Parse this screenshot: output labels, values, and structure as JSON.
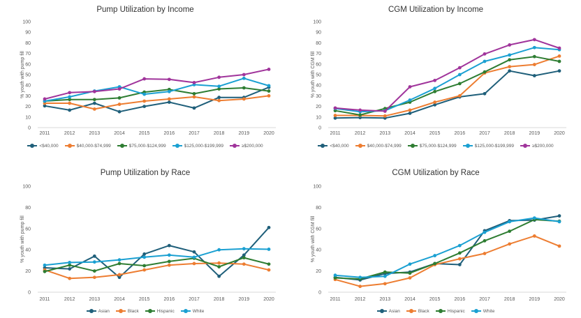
{
  "chart_data": [
    {
      "type": "line",
      "title": "Pump Utilization by Income",
      "ylabel": "% youth with pump fill",
      "xlabel": "",
      "x": [
        "2011",
        "2012",
        "2013",
        "2014",
        "2015",
        "2016",
        "2017",
        "2018",
        "2019",
        "2020"
      ],
      "ylim": [
        0,
        100
      ],
      "yticks": [
        0,
        10,
        20,
        30,
        40,
        50,
        60,
        70,
        80,
        90,
        100
      ],
      "legend_position": "bottom",
      "series": [
        {
          "name": "<$40,000",
          "color": "#1f5f7a",
          "values": [
            20.5,
            16.5,
            23,
            15,
            20,
            24,
            18.5,
            28.5,
            28.5,
            38
          ]
        },
        {
          "name": "$40,000-$74,999",
          "color": "#ed7d31",
          "values": [
            23,
            23,
            17.5,
            22,
            25,
            27,
            29,
            25.5,
            27,
            30
          ]
        },
        {
          "name": "$75,000-$124,999",
          "color": "#2e7d32",
          "values": [
            25,
            26.5,
            26.5,
            28,
            33.5,
            36,
            32,
            36.5,
            37.5,
            34.5
          ]
        },
        {
          "name": "$125,000-$199,999",
          "color": "#1aa0d2",
          "values": [
            25,
            29,
            34.5,
            38.5,
            31.5,
            34,
            40.5,
            39,
            46.5,
            39.5
          ]
        },
        {
          "name": "≥$200,000",
          "color": "#a0349b",
          "values": [
            27,
            33,
            34,
            36.5,
            46,
            45.5,
            42.5,
            47.5,
            50,
            55
          ]
        }
      ]
    },
    {
      "type": "line",
      "title": "CGM Utilization by Income",
      "ylabel": "% youth with CGM fill",
      "xlabel": "",
      "x": [
        "2011",
        "2012",
        "2013",
        "2014",
        "2015",
        "2016",
        "2017",
        "2018",
        "2019",
        "2020"
      ],
      "ylim": [
        0,
        100
      ],
      "yticks": [
        0,
        10,
        20,
        30,
        40,
        50,
        60,
        70,
        80,
        90,
        100
      ],
      "legend_position": "bottom",
      "series": [
        {
          "name": "<$40,000",
          "color": "#1f5f7a",
          "values": [
            9,
            9.5,
            9,
            13.5,
            21.5,
            29,
            32,
            53.5,
            49,
            53.5
          ]
        },
        {
          "name": "$40,000-$74,999",
          "color": "#ed7d31",
          "values": [
            11.5,
            11.5,
            11,
            16.5,
            24,
            30,
            51.5,
            57.5,
            59.5,
            67.5
          ]
        },
        {
          "name": "$75,000-$124,999",
          "color": "#2e7d32",
          "values": [
            16,
            12,
            18,
            24,
            34,
            41.5,
            52.5,
            64,
            67,
            62.5
          ]
        },
        {
          "name": "$125,000-$199,999",
          "color": "#1aa0d2",
          "values": [
            18,
            15,
            16,
            26,
            37,
            50,
            62.5,
            68.5,
            75.5,
            73.5
          ]
        },
        {
          "name": "≥$200,000",
          "color": "#a0349b",
          "values": [
            18.5,
            16.5,
            15.5,
            38.5,
            44.5,
            56.5,
            69.5,
            78,
            83,
            75
          ]
        }
      ]
    },
    {
      "type": "line",
      "title": "Pump Utilization by Race",
      "ylabel": "% youth with pump fill",
      "xlabel": "",
      "x": [
        "2011",
        "2012",
        "2013",
        "2014",
        "2015",
        "2016",
        "2017",
        "2018",
        "2019",
        "2020"
      ],
      "ylim": [
        0,
        100
      ],
      "yticks": [
        0,
        20,
        40,
        60,
        80,
        100
      ],
      "legend_position": "bottom",
      "series": [
        {
          "name": "Asian",
          "color": "#1f5f7a",
          "values": [
            23,
            22,
            34,
            14,
            36,
            44,
            38,
            15,
            35,
            61
          ]
        },
        {
          "name": "Black",
          "color": "#ed7d31",
          "values": [
            21,
            13,
            14,
            16.5,
            21,
            25.5,
            27,
            27.5,
            26.5,
            21
          ]
        },
        {
          "name": "Hispanic",
          "color": "#2e7d32",
          "values": [
            19.5,
            25.5,
            20,
            27,
            25,
            29,
            32,
            24,
            32.5,
            26.5
          ]
        },
        {
          "name": "White",
          "color": "#1aa0d2",
          "values": [
            25.5,
            28,
            28.5,
            30.5,
            33,
            35,
            33,
            40,
            41,
            40.5
          ]
        }
      ]
    },
    {
      "type": "line",
      "title": "CGM Utilization by Race",
      "ylabel": "% youth with CGM fill",
      "xlabel": "",
      "x": [
        "2011",
        "2012",
        "2013",
        "2014",
        "2015",
        "2016",
        "2017",
        "2018",
        "2019",
        "2020"
      ],
      "ylim": [
        0,
        100
      ],
      "yticks": [
        0,
        20,
        40,
        60,
        80,
        100
      ],
      "legend_position": "bottom",
      "series": [
        {
          "name": "Asian",
          "color": "#1f5f7a",
          "values": [
            14,
            11.5,
            17.5,
            19,
            27,
            26,
            58,
            67.5,
            68,
            72
          ]
        },
        {
          "name": "Black",
          "color": "#ed7d31",
          "values": [
            12,
            5.5,
            8,
            13.5,
            26,
            31.5,
            36.5,
            45.5,
            53,
            43.5
          ]
        },
        {
          "name": "Hispanic",
          "color": "#2e7d32",
          "values": [
            13.5,
            12.5,
            19,
            18,
            27,
            37,
            48.5,
            57.5,
            68.5,
            67
          ]
        },
        {
          "name": "White",
          "color": "#1aa0d2",
          "values": [
            16,
            14,
            15,
            26.5,
            34.5,
            44,
            56.5,
            66.5,
            70,
            66.5
          ]
        }
      ]
    }
  ]
}
